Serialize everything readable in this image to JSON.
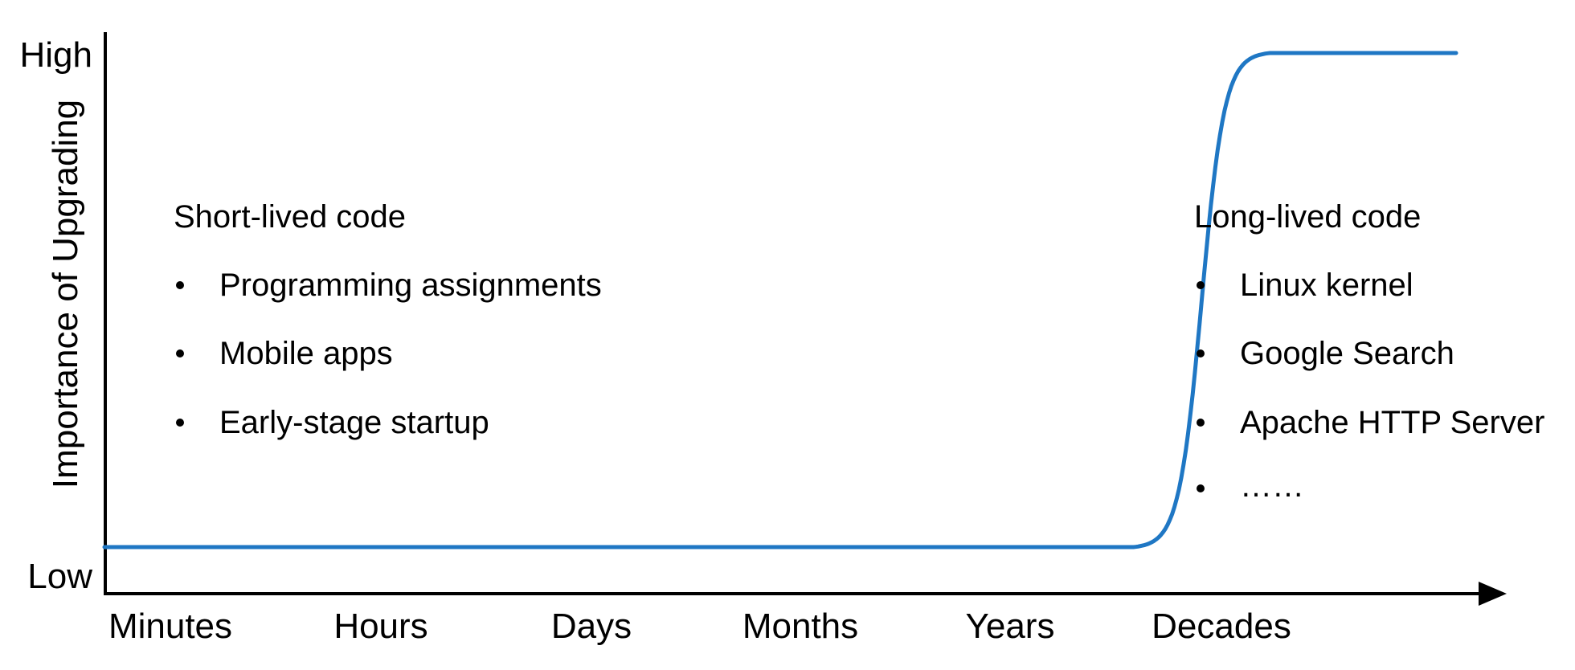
{
  "chart_data": {
    "type": "line",
    "title": "",
    "xlabel": "",
    "ylabel": "Importance of Upgrading",
    "x_ticks": [
      "Minutes",
      "Hours",
      "Days",
      "Months",
      "Years",
      "Decades"
    ],
    "y_ticks": [
      "Low",
      "High"
    ],
    "series": [
      {
        "name": "",
        "color": "#1f77c4",
        "curve": "sigmoid",
        "points": [
          {
            "x": "Minutes",
            "y": "Low"
          },
          {
            "x": "Hours",
            "y": "Low"
          },
          {
            "x": "Days",
            "y": "Low"
          },
          {
            "x": "Months",
            "y": "Low"
          },
          {
            "x": "Years",
            "y": "Low"
          },
          {
            "x": "Decades",
            "y": "High"
          }
        ]
      }
    ],
    "grid": false,
    "legend": "none",
    "annotations": [
      {
        "heading": "Short-lived code",
        "items": [
          "Programming assignments",
          "Mobile apps",
          "Early-stage startup"
        ]
      },
      {
        "heading": "Long-lived code",
        "items": [
          "Linux kernel",
          "Google Search",
          "Apache HTTP Server",
          "……"
        ]
      }
    ]
  }
}
